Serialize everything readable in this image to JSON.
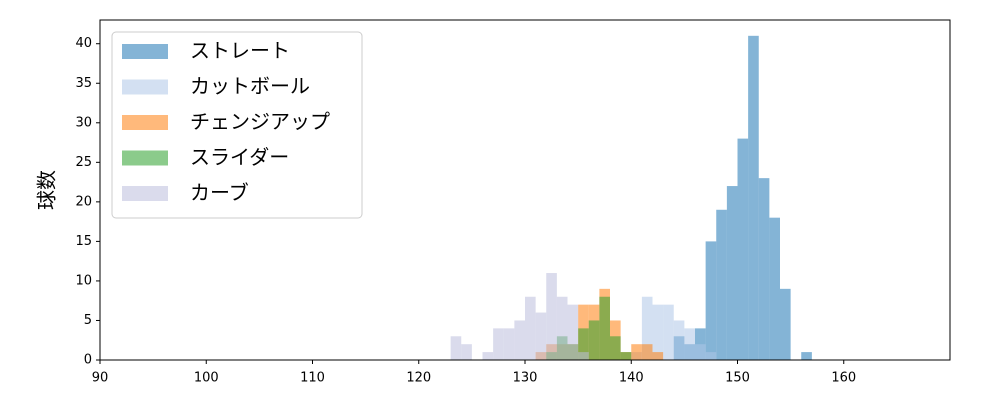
{
  "chart_data": {
    "type": "histogram",
    "y_label": "球数",
    "xlim": [
      90,
      170
    ],
    "ylim": [
      0,
      43
    ],
    "xticks": [
      90,
      100,
      110,
      120,
      130,
      140,
      150,
      160
    ],
    "yticks": [
      0,
      5,
      10,
      15,
      20,
      25,
      30,
      35,
      40
    ],
    "legend": "upper left",
    "series": [
      {
        "name": "ストレート",
        "color": "#1f77b4",
        "bins": [
          144,
          145,
          146,
          147,
          148,
          149,
          150,
          151,
          152,
          153,
          154,
          155,
          156,
          157
        ],
        "counts": [
          3,
          2,
          4,
          15,
          19,
          22,
          28,
          41,
          23,
          18,
          9,
          0,
          1
        ]
      },
      {
        "name": "カットボール",
        "color": "#aec7e8",
        "bins": [
          140,
          141,
          142,
          143,
          144,
          145,
          146,
          147,
          148
        ],
        "counts": [
          1,
          8,
          7,
          7,
          5,
          4,
          2,
          1
        ]
      },
      {
        "name": "チェンジアップ",
        "color": "#ff7f0e",
        "bins": [
          131,
          132,
          133,
          134,
          135,
          136,
          137,
          138,
          139,
          140,
          141,
          142,
          143
        ],
        "counts": [
          1,
          2,
          2,
          2,
          7,
          7,
          9,
          5,
          1,
          2,
          2,
          1
        ]
      },
      {
        "name": "スライダー",
        "color": "#2ca02c",
        "bins": [
          132,
          133,
          134,
          135,
          136,
          137,
          138,
          139,
          140
        ],
        "counts": [
          1,
          3,
          2,
          4,
          5,
          8,
          3,
          1
        ]
      },
      {
        "name": "カーブ",
        "color": "#bcbddc",
        "bins": [
          123,
          124,
          125,
          126,
          127,
          128,
          129,
          130,
          131,
          132,
          133,
          134,
          135,
          136
        ],
        "counts": [
          3,
          2,
          0,
          1,
          4,
          4,
          5,
          8,
          6,
          11,
          8,
          7,
          1
        ]
      }
    ]
  }
}
